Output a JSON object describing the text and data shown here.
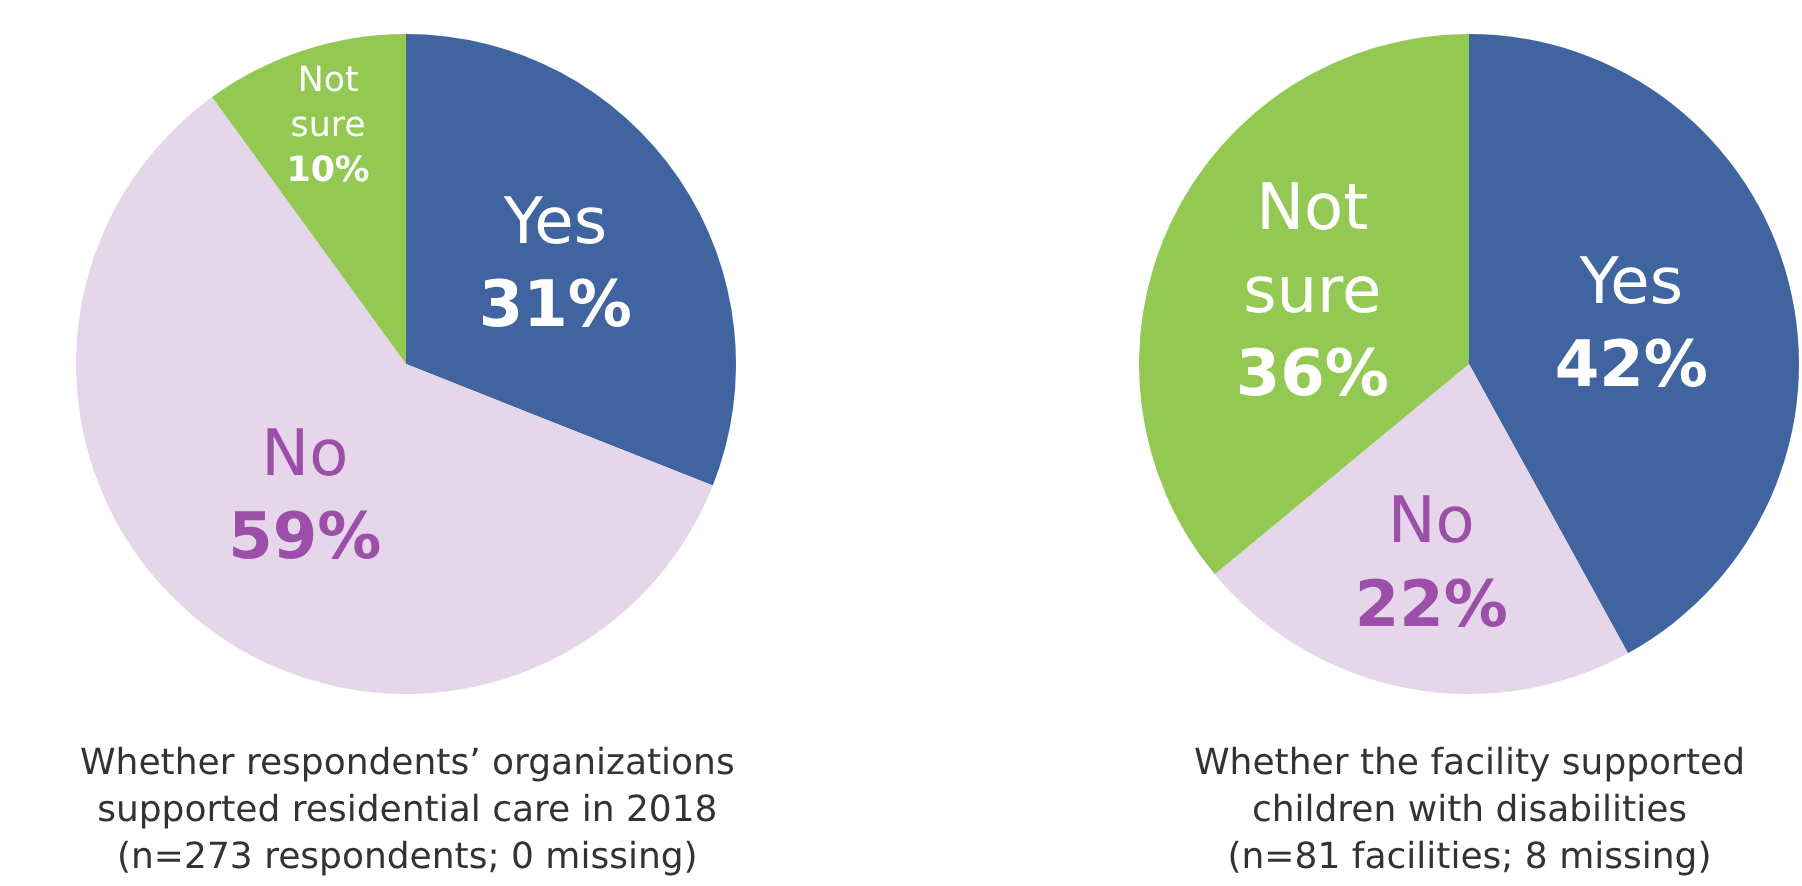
{
  "chart_data": [
    {
      "type": "pie",
      "title": "Whether respondents’ organizations supported residential care in 2018",
      "subtitle": "(n=273 respondents; 0 missing)",
      "categories": [
        "Yes",
        "No",
        "Not sure"
      ],
      "values": [
        31,
        59,
        10
      ],
      "colors": [
        "#4064a0",
        "#e6d6ea",
        "#93c953"
      ],
      "value_labels": [
        "31%",
        "59%",
        "10%"
      ]
    },
    {
      "type": "pie",
      "title": "Whether the facility supported children with disabilities",
      "subtitle": "(n=81 facilities; 8 missing)",
      "categories": [
        "Yes",
        "No",
        "Not sure"
      ],
      "values": [
        42,
        22,
        36
      ],
      "colors": [
        "#4064a0",
        "#e6d6ea",
        "#93c953"
      ],
      "value_labels": [
        "42%",
        "22%",
        "36%"
      ]
    }
  ]
}
